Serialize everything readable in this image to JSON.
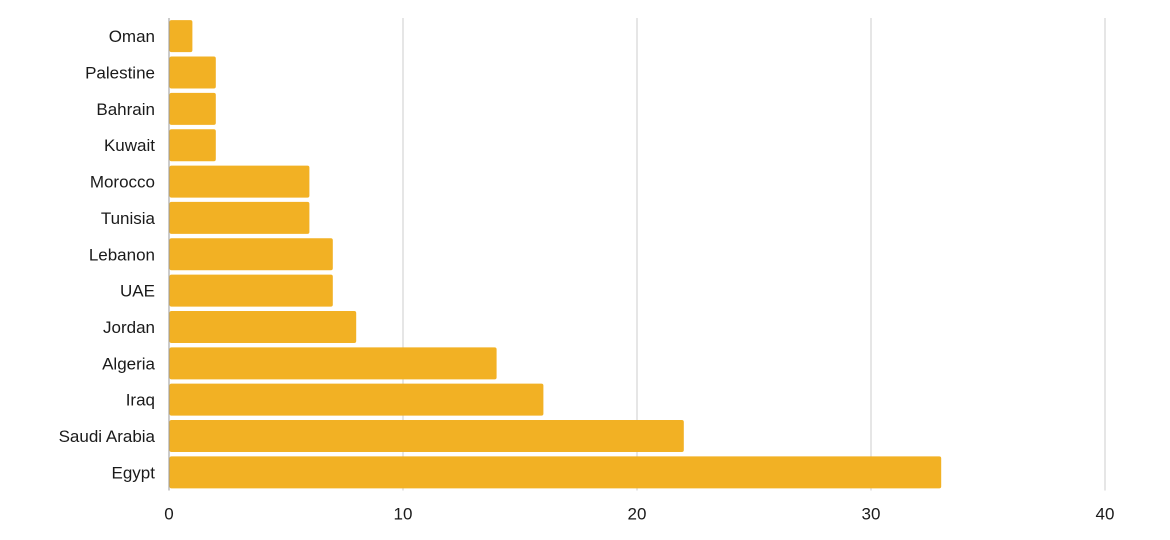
{
  "chart_data": {
    "type": "bar",
    "orientation": "horizontal",
    "categories": [
      "Oman",
      "Palestine",
      "Bahrain",
      "Kuwait",
      "Morocco",
      "Tunisia ",
      "Lebanon",
      "UAE",
      "Jordan",
      "Algeria",
      "Iraq",
      "Saudi Arabia",
      "Egypt"
    ],
    "values": [
      1,
      2,
      2,
      2,
      6,
      6,
      7,
      7,
      8,
      14,
      16,
      22,
      33
    ],
    "title": "",
    "xlabel": "",
    "ylabel": "",
    "xlim": [
      0,
      40
    ],
    "xticks": [
      "0",
      "10",
      "20",
      "30",
      "40"
    ],
    "grid": "vertical",
    "legend": "none",
    "bar_color": "#f2b124",
    "grid_color": "#cccccc"
  }
}
